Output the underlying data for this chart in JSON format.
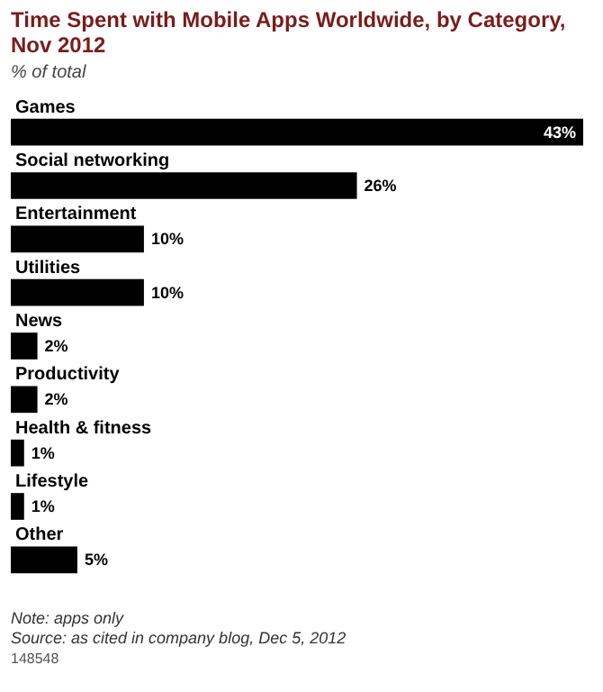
{
  "chart_data": {
    "type": "bar",
    "orientation": "horizontal",
    "title": "Time Spent with Mobile Apps Worldwide, by Category, Nov 2012",
    "subtitle": "% of total",
    "categories": [
      "Games",
      "Social networking",
      "Entertainment",
      "Utilities",
      "News",
      "Productivity",
      "Health & fitness",
      "Lifestyle",
      "Other"
    ],
    "values": [
      43,
      26,
      10,
      10,
      2,
      2,
      1,
      1,
      5
    ],
    "value_labels": [
      "43%",
      "26%",
      "10%",
      "10%",
      "2%",
      "2%",
      "1%",
      "1%",
      "5%"
    ],
    "color": "#000000",
    "grid": false,
    "annotations": [
      "Note: apps only",
      "Source: as cited in company blog, Dec 5, 2012",
      "148548"
    ]
  }
}
